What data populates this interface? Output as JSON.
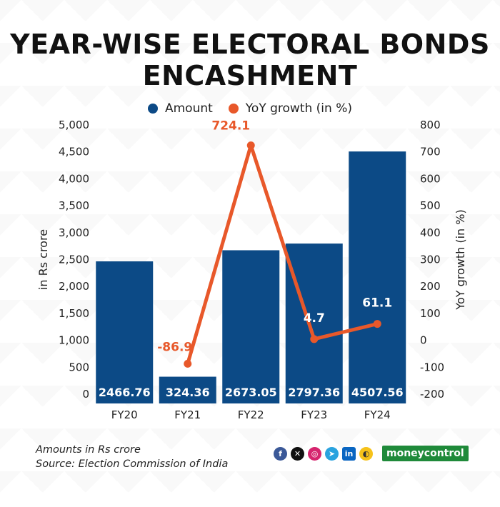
{
  "title_line1": "YEAR-WISE ELECTORAL BONDS",
  "title_line2": "ENCASHMENT",
  "footer": {
    "note": "Amounts in Rs crore",
    "source": "Source: Election Commission of India"
  },
  "social_icons": [
    "facebook-icon",
    "x-icon",
    "instagram-icon",
    "telegram-icon",
    "linkedin-icon",
    "koo-icon"
  ],
  "brand": "moneycontrol",
  "colors": {
    "bar": "#0c4a86",
    "line": "#e8582a",
    "text": "#222222",
    "brand": "#1f8a3a"
  },
  "chart_data": {
    "type": "bar",
    "categories": [
      "FY20",
      "FY21",
      "FY22",
      "FY23",
      "FY24"
    ],
    "series": [
      {
        "name": "Amount",
        "type": "bar",
        "axis": "left",
        "values": [
          2466.76,
          324.36,
          2673.05,
          2797.36,
          4507.56
        ],
        "labels": [
          "2466.76",
          "324.36",
          "2673.05",
          "2797.36",
          "4507.56"
        ]
      },
      {
        "name": "YoY growth (in %)",
        "type": "line",
        "axis": "right",
        "values": [
          null,
          -86.9,
          724.1,
          4.7,
          61.1
        ],
        "labels": [
          "",
          "-86.9",
          "724.1",
          "4.7",
          "61.1"
        ]
      }
    ],
    "ylabel": "in Rs crore",
    "y2label": "YoY growth (in %)",
    "ylim": [
      0,
      5000
    ],
    "y2lim": [
      -200,
      800
    ],
    "yticks": [
      "0",
      "500",
      "1,000",
      "1,500",
      "2,000",
      "2,500",
      "3,000",
      "3,500",
      "4,000",
      "4,500",
      "5,000"
    ],
    "y2ticks": [
      "-200",
      "-100",
      "0",
      "100",
      "200",
      "300",
      "400",
      "500",
      "600",
      "700",
      "800"
    ],
    "legend_position": "top-center",
    "grid": false
  }
}
